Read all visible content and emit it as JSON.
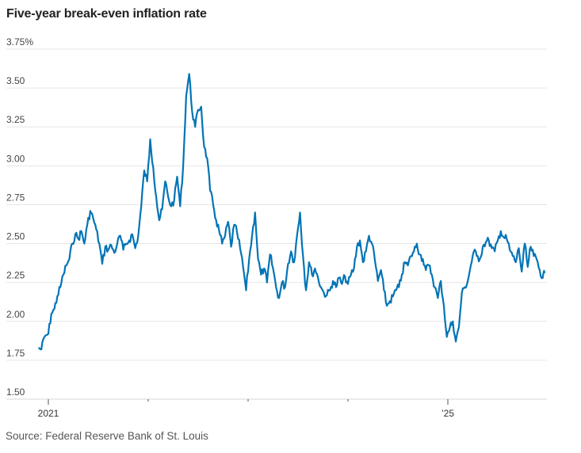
{
  "chart_data": {
    "type": "line",
    "title": "Five-year break-even inflation rate",
    "source": "Source: Federal Reserve Bank of St. Louis",
    "xlabel": "",
    "ylabel": "",
    "ylim": [
      1.5,
      3.75
    ],
    "yticks": [
      3.75,
      3.5,
      3.25,
      3.0,
      2.75,
      2.5,
      2.25,
      2.0,
      1.75,
      1.5
    ],
    "ytick_labels": [
      "3.75%",
      "3.50",
      "3.25",
      "3.00",
      "2.75",
      "2.50",
      "2.25",
      "2.00",
      "1.75",
      "1.50"
    ],
    "xlim": [
      2020.9,
      2025.99
    ],
    "xticks": [
      2021,
      2022,
      2023,
      2024,
      2025
    ],
    "xtick_labels": [
      "2021",
      "",
      "",
      "",
      "’25"
    ],
    "grid": true,
    "line_color": "#0274B6",
    "series": [
      {
        "name": "Five-year break-even inflation rate",
        "x": [
          2020.9,
          2020.93,
          2020.96,
          2021.0,
          2021.03,
          2021.06,
          2021.09,
          2021.12,
          2021.15,
          2021.18,
          2021.21,
          2021.24,
          2021.27,
          2021.3,
          2021.33,
          2021.36,
          2021.39,
          2021.42,
          2021.45,
          2021.48,
          2021.51,
          2021.54,
          2021.57,
          2021.6,
          2021.63,
          2021.66,
          2021.69,
          2021.72,
          2021.75,
          2021.78,
          2021.81,
          2021.84,
          2021.87,
          2021.9,
          2021.93,
          2021.96,
          2021.99,
          2022.02,
          2022.05,
          2022.08,
          2022.11,
          2022.14,
          2022.17,
          2022.2,
          2022.23,
          2022.26,
          2022.29,
          2022.32,
          2022.35,
          2022.38,
          2022.41,
          2022.44,
          2022.47,
          2022.5,
          2022.53,
          2022.56,
          2022.59,
          2022.62,
          2022.65,
          2022.68,
          2022.71,
          2022.74,
          2022.77,
          2022.8,
          2022.83,
          2022.86,
          2022.89,
          2022.92,
          2022.95,
          2022.98,
          2023.01,
          2023.04,
          2023.07,
          2023.1,
          2023.13,
          2023.16,
          2023.19,
          2023.22,
          2023.25,
          2023.28,
          2023.31,
          2023.34,
          2023.37,
          2023.4,
          2023.43,
          2023.46,
          2023.49,
          2023.52,
          2023.55,
          2023.58,
          2023.61,
          2023.64,
          2023.67,
          2023.7,
          2023.73,
          2023.76,
          2023.79,
          2023.82,
          2023.85,
          2023.88,
          2023.91,
          2023.94,
          2023.97,
          2024.0,
          2024.03,
          2024.06,
          2024.09,
          2024.12,
          2024.15,
          2024.18,
          2024.21,
          2024.24,
          2024.27,
          2024.3,
          2024.33,
          2024.36,
          2024.39,
          2024.42,
          2024.45,
          2024.48,
          2024.51,
          2024.54,
          2024.57,
          2024.6,
          2024.63,
          2024.66,
          2024.69,
          2024.72,
          2024.75,
          2024.78,
          2024.81,
          2024.84,
          2024.87,
          2024.9,
          2024.93,
          2024.96,
          2024.99,
          2025.02,
          2025.05,
          2025.08,
          2025.11,
          2025.14,
          2025.17,
          2025.2,
          2025.23,
          2025.26,
          2025.29,
          2025.32,
          2025.35,
          2025.38,
          2025.41,
          2025.44,
          2025.47,
          2025.5,
          2025.53,
          2025.56,
          2025.59,
          2025.62,
          2025.65,
          2025.68,
          2025.71,
          2025.74,
          2025.77,
          2025.8,
          2025.83,
          2025.86,
          2025.89,
          2025.92,
          2025.95,
          2025.97
        ],
        "values": [
          1.83,
          1.82,
          1.9,
          1.92,
          2.05,
          2.08,
          2.16,
          2.22,
          2.3,
          2.36,
          2.4,
          2.5,
          2.56,
          2.53,
          2.58,
          2.5,
          2.62,
          2.71,
          2.66,
          2.59,
          2.5,
          2.37,
          2.48,
          2.46,
          2.49,
          2.44,
          2.5,
          2.55,
          2.46,
          2.5,
          2.52,
          2.56,
          2.47,
          2.55,
          2.74,
          2.97,
          2.9,
          3.17,
          2.99,
          2.8,
          2.65,
          2.72,
          2.9,
          2.8,
          2.74,
          2.78,
          2.93,
          2.74,
          3.0,
          3.45,
          3.59,
          3.35,
          3.25,
          3.36,
          3.38,
          3.12,
          3.05,
          2.84,
          2.75,
          2.65,
          2.58,
          2.5,
          2.55,
          2.64,
          2.48,
          2.62,
          2.57,
          2.47,
          2.35,
          2.2,
          2.4,
          2.55,
          2.7,
          2.4,
          2.3,
          2.34,
          2.25,
          2.43,
          2.34,
          2.22,
          2.15,
          2.25,
          2.22,
          2.37,
          2.45,
          2.38,
          2.55,
          2.7,
          2.42,
          2.2,
          2.38,
          2.3,
          2.34,
          2.28,
          2.22,
          2.18,
          2.17,
          2.2,
          2.26,
          2.22,
          2.28,
          2.24,
          2.29,
          2.24,
          2.3,
          2.34,
          2.48,
          2.52,
          2.38,
          2.45,
          2.55,
          2.5,
          2.39,
          2.26,
          2.33,
          2.2,
          2.1,
          2.13,
          2.16,
          2.2,
          2.22,
          2.3,
          2.38,
          2.36,
          2.42,
          2.45,
          2.5,
          2.43,
          2.4,
          2.33,
          2.36,
          2.3,
          2.22,
          2.15,
          2.26,
          2.1,
          1.9,
          1.96,
          2.0,
          1.87,
          1.96,
          2.18,
          2.22,
          2.26,
          2.36,
          2.45,
          2.42,
          2.4,
          2.48,
          2.51,
          2.52,
          2.47,
          2.45,
          2.52,
          2.58,
          2.54,
          2.53,
          2.46,
          2.42,
          2.38,
          2.47,
          2.32,
          2.5,
          2.35,
          2.48,
          2.42,
          2.4,
          2.33,
          2.28,
          2.31
        ]
      }
    ]
  }
}
